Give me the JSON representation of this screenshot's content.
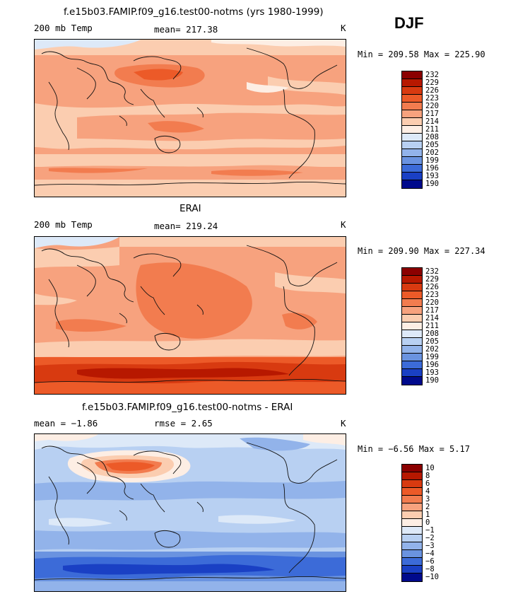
{
  "season": "DJF",
  "panels": [
    {
      "title": "f.e15b03.FAMIP.f09_g16.test00-notms (yrs 1980-1999)",
      "left_text": "200 mb Temp",
      "center_text": "mean= 217.38",
      "right_text": "K",
      "minmax": "Min = 209.58 Max = 225.90",
      "palette": "abs",
      "colorbar_labels": [
        "232",
        "229",
        "226",
        "223",
        "220",
        "217",
        "214",
        "211",
        "208",
        "205",
        "202",
        "199",
        "196",
        "193",
        "190"
      ]
    },
    {
      "title": "ERAI",
      "left_text": "200 mb Temp",
      "center_text": "mean= 219.24",
      "right_text": "K",
      "minmax": "Min = 209.90 Max = 227.34",
      "palette": "abs",
      "colorbar_labels": [
        "232",
        "229",
        "226",
        "223",
        "220",
        "217",
        "214",
        "211",
        "208",
        "205",
        "202",
        "199",
        "196",
        "193",
        "190"
      ]
    },
    {
      "title": "f.e15b03.FAMIP.f09_g16.test00-notms - ERAI",
      "left_text": "mean =  −1.86",
      "center_text": "rmse =   2.65",
      "right_text": "K",
      "minmax": "Min =  −6.56 Max =   5.17",
      "palette": "diff",
      "colorbar_labels": [
        "10",
        "8",
        "6",
        "4",
        "3",
        "2",
        "1",
        "0",
        "−1",
        "−2",
        "−3",
        "−4",
        "−6",
        "−8",
        "−10"
      ]
    }
  ],
  "colors": {
    "abs": [
      "#8b0000",
      "#b71800",
      "#d83a10",
      "#ec5a28",
      "#f27c4f",
      "#f7a27e",
      "#fbcdb0",
      "#fdeee4",
      "#dde9f8",
      "#b8d0f2",
      "#92b3ea",
      "#6a93e0",
      "#3c6bd8",
      "#1a40c4",
      "#000a8c"
    ],
    "diff": [
      "#8b0000",
      "#b71800",
      "#d83a10",
      "#ec5a28",
      "#f27c4f",
      "#f7a27e",
      "#fbcdb0",
      "#fdeee4",
      "#dde9f8",
      "#b8d0f2",
      "#92b3ea",
      "#6a93e0",
      "#3c6bd8",
      "#1a40c4",
      "#000a8c"
    ]
  },
  "chart_data": [
    {
      "type": "heatmap",
      "title": "f.e15b03.FAMIP.f09_g16.test00-notms (yrs 1980-1999)",
      "variable": "200 mb Temp",
      "units": "K",
      "mean": 217.38,
      "min": 209.58,
      "max": 225.9,
      "season": "DJF",
      "levels": [
        190,
        193,
        196,
        199,
        202,
        205,
        208,
        211,
        214,
        217,
        220,
        223,
        226,
        229,
        232
      ]
    },
    {
      "type": "heatmap",
      "title": "ERAI",
      "variable": "200 mb Temp",
      "units": "K",
      "mean": 219.24,
      "min": 209.9,
      "max": 227.34,
      "season": "DJF",
      "levels": [
        190,
        193,
        196,
        199,
        202,
        205,
        208,
        211,
        214,
        217,
        220,
        223,
        226,
        229,
        232
      ]
    },
    {
      "type": "heatmap",
      "title": "f.e15b03.FAMIP.f09_g16.test00-notms - ERAI",
      "units": "K",
      "mean": -1.86,
      "rmse": 2.65,
      "min": -6.56,
      "max": 5.17,
      "season": "DJF",
      "levels": [
        -10,
        -8,
        -6,
        -4,
        -3,
        -2,
        -1,
        0,
        1,
        2,
        3,
        4,
        6,
        8,
        10
      ]
    }
  ]
}
